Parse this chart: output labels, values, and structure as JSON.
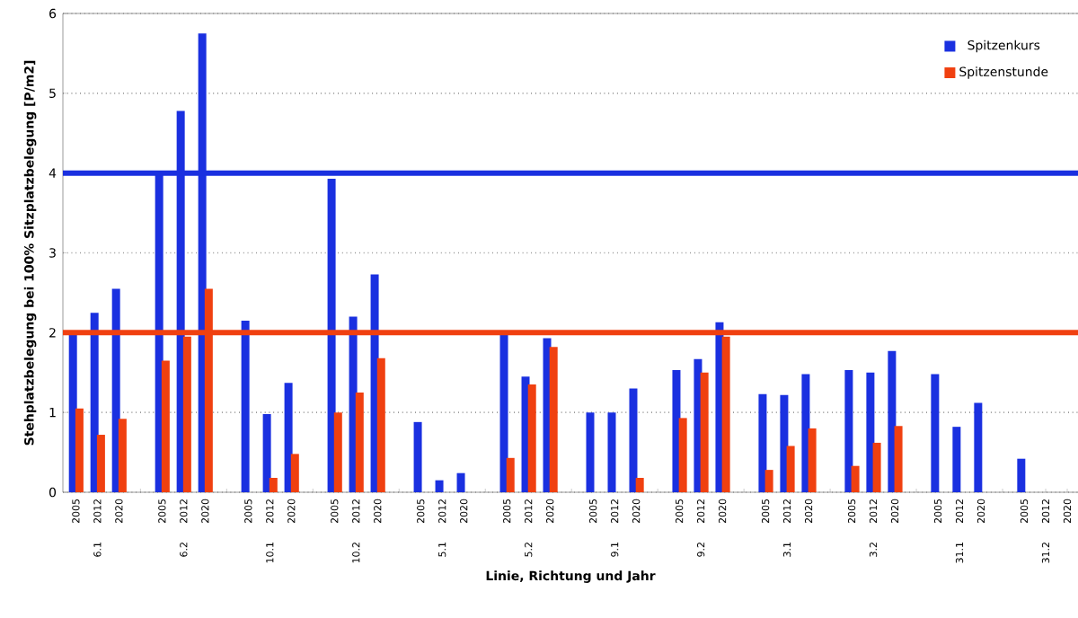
{
  "chart_data": {
    "type": "bar",
    "xlabel": "Linie, Richtung und Jahr",
    "ylabel": "Stehplatzbelegung bei 100% Sitzplatzbelegung [P/m2]",
    "categories": [
      "2005",
      "2012",
      "2020",
      null,
      "2005",
      "2012",
      "2020",
      null,
      "2005",
      "2012",
      "2020",
      null,
      "2005",
      "2012",
      "2020",
      null,
      "2005",
      "2012",
      "2020",
      null,
      "2005",
      "2012",
      "2020",
      null,
      "2005",
      "2012",
      "2020",
      null,
      "2005",
      "2012",
      "2020",
      null,
      "2005",
      "2012",
      "2020",
      null,
      "2005",
      "2012",
      "2020",
      null,
      "2005",
      "2012",
      "2020",
      null,
      "2005",
      "2012",
      "2020"
    ],
    "series": [
      {
        "name": "Spitzenkurs",
        "color": "#1a30e0",
        "values": [
          1.98,
          2.25,
          2.55,
          null,
          3.98,
          4.78,
          5.75,
          null,
          2.15,
          0.98,
          1.37,
          null,
          3.93,
          2.2,
          2.73,
          null,
          0.88,
          0.15,
          0.24,
          null,
          2.0,
          1.45,
          1.93,
          null,
          1.0,
          1.0,
          1.3,
          null,
          1.53,
          1.67,
          2.13,
          null,
          1.23,
          1.22,
          1.48,
          null,
          1.53,
          1.5,
          1.77,
          null,
          1.48,
          0.82,
          1.12,
          null,
          0.42,
          null,
          null
        ]
      },
      {
        "name": "Spitzenstunde",
        "color": "#f04010",
        "values": [
          1.05,
          0.72,
          0.92,
          null,
          1.65,
          1.95,
          2.55,
          null,
          null,
          0.18,
          0.48,
          null,
          1.0,
          1.25,
          1.68,
          null,
          null,
          null,
          null,
          null,
          0.43,
          1.35,
          1.82,
          null,
          null,
          null,
          0.18,
          null,
          0.93,
          1.5,
          1.95,
          null,
          0.28,
          0.58,
          0.8,
          null,
          0.33,
          0.62,
          0.83,
          null,
          null,
          null,
          null,
          null,
          null,
          null,
          null
        ]
      }
    ],
    "annotations": [
      "6.1",
      "6.2",
      "10.1",
      "10.2",
      "5.1",
      "5.2",
      "9.1",
      "9.2",
      "3.1",
      "3.2",
      "31.1",
      "31.2"
    ],
    "ref_lines": [
      {
        "axis": "y",
        "value": 4,
        "color": "#1a30e0"
      },
      {
        "axis": "y",
        "value": 2,
        "color": "#f04010"
      }
    ],
    "ylim": [
      0,
      6
    ],
    "yticks": [
      0,
      1,
      2,
      3,
      4,
      5,
      6
    ],
    "grid": "y",
    "legend": "top right"
  }
}
